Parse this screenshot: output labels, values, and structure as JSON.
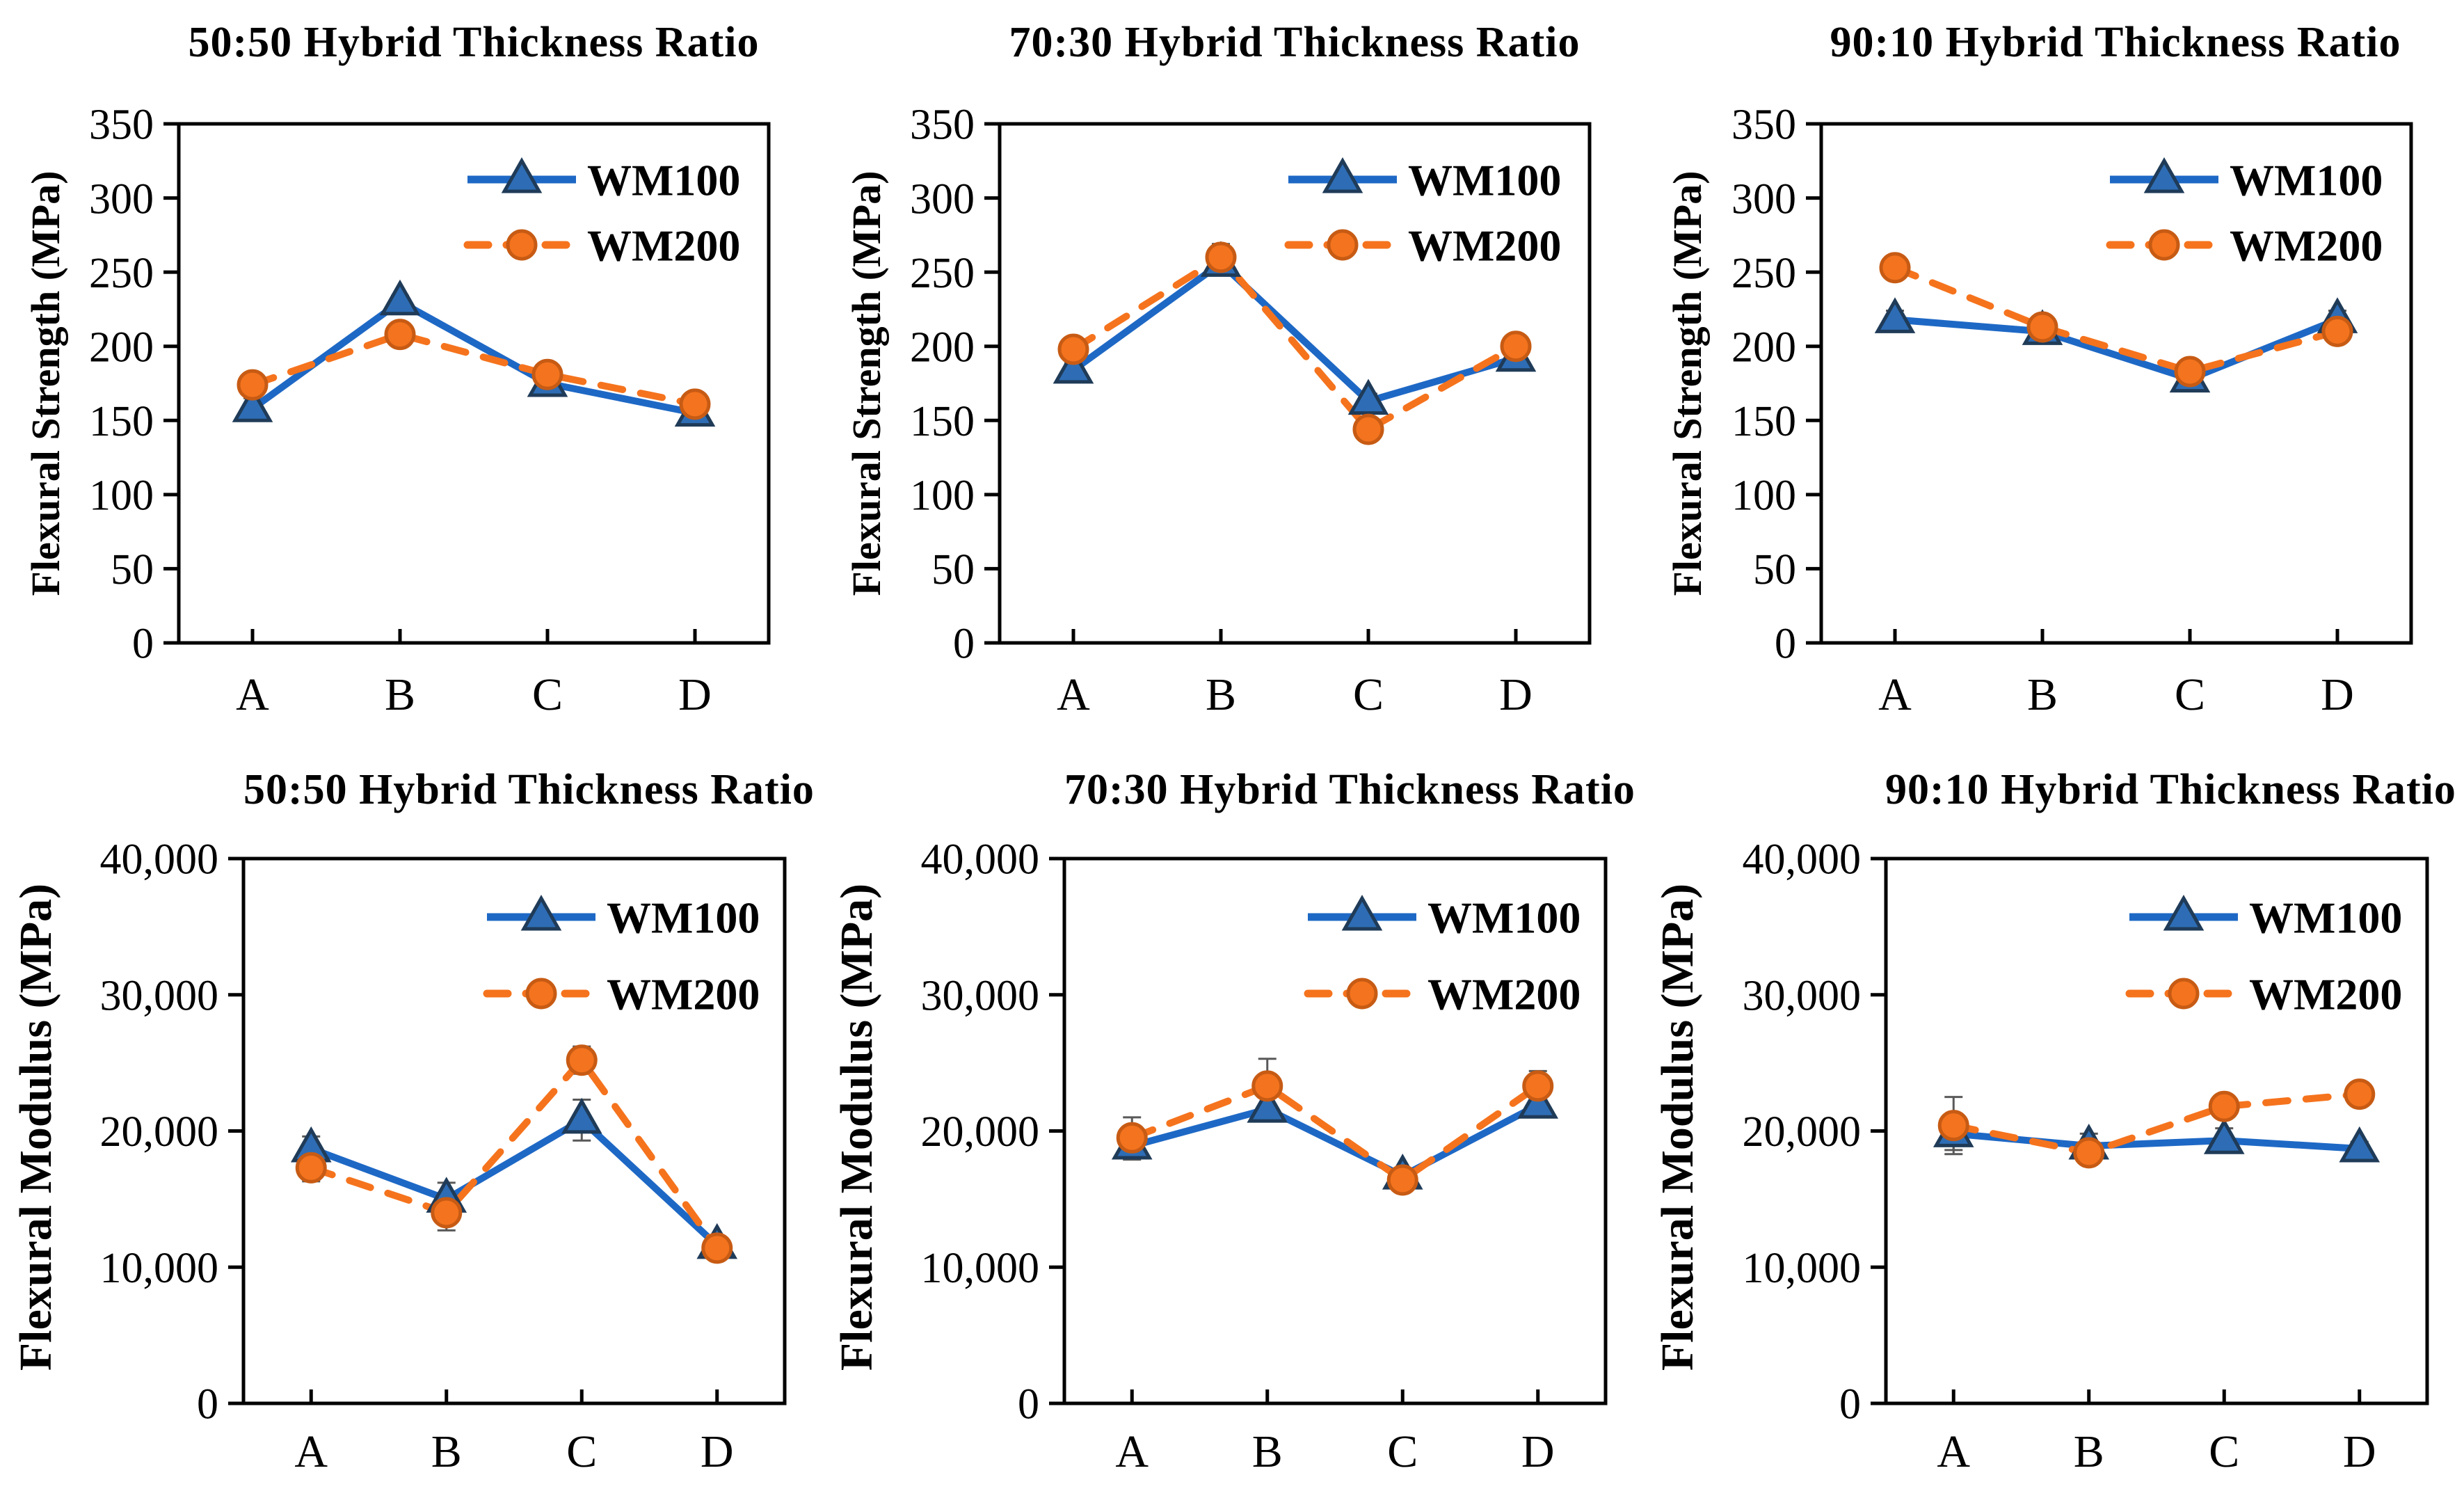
{
  "colors": {
    "wm100_line": "#1E68C5",
    "wm100_marker_fill": "#2E6DB5",
    "wm100_marker_stroke": "#1F3B58",
    "wm200_line": "#F5731D",
    "wm200_marker_fill": "#F4731E",
    "wm200_marker_stroke": "#C75B14",
    "error_bar": "#595959",
    "axis": "#000000",
    "text": "#000000",
    "background": "#FFFFFF"
  },
  "chart_data": [
    {
      "type": "line",
      "title": "50:50 Hybrid Thickness Ratio",
      "ylabel": "Flexural Strength (MPa)",
      "categories": [
        "A",
        "B",
        "C",
        "D"
      ],
      "ylim": [
        0,
        350
      ],
      "ytick_values": [
        0,
        50,
        100,
        150,
        200,
        250,
        300,
        350
      ],
      "ytick_labels": [
        "0",
        "50",
        "100",
        "150",
        "200",
        "250",
        "300",
        "350"
      ],
      "grid": false,
      "legend_position": "top-right-inside",
      "series": [
        {
          "name": "WM100",
          "values": [
            158,
            230,
            175,
            155
          ],
          "errors": [
            7,
            4,
            5,
            4
          ]
        },
        {
          "name": "WM200",
          "values": [
            174,
            208,
            181,
            161
          ],
          "errors": [
            8,
            4,
            5,
            3
          ]
        }
      ]
    },
    {
      "type": "line",
      "title": "70:30 Hybrid Thickness Ratio",
      "ylabel": "Flexural Strength (MPa)",
      "categories": [
        "A",
        "B",
        "C",
        "D"
      ],
      "ylim": [
        0,
        350
      ],
      "ytick_values": [
        0,
        50,
        100,
        150,
        200,
        250,
        300,
        350
      ],
      "ytick_labels": [
        "0",
        "50",
        "100",
        "150",
        "200",
        "250",
        "300",
        "350"
      ],
      "grid": false,
      "legend_position": "top-right-inside",
      "series": [
        {
          "name": "WM100",
          "values": [
            184,
            256,
            163,
            192
          ],
          "errors": [
            5,
            4,
            5,
            4
          ]
        },
        {
          "name": "WM200",
          "values": [
            198,
            260,
            144,
            200
          ],
          "errors": [
            5,
            9,
            5,
            4
          ]
        }
      ]
    },
    {
      "type": "line",
      "title": "90:10 Hybrid Thickness Ratio",
      "ylabel": "Flexural Strength (MPa)",
      "categories": [
        "A",
        "B",
        "C",
        "D"
      ],
      "ylim": [
        0,
        350
      ],
      "ytick_values": [
        0,
        50,
        100,
        150,
        200,
        250,
        300,
        350
      ],
      "ytick_labels": [
        "0",
        "50",
        "100",
        "150",
        "200",
        "250",
        "300",
        "350"
      ],
      "grid": false,
      "legend_position": "top-right-inside",
      "series": [
        {
          "name": "WM100",
          "values": [
            218,
            210,
            178,
            218
          ],
          "errors": [
            6,
            5,
            7,
            6
          ]
        },
        {
          "name": "WM200",
          "values": [
            253,
            213,
            183,
            210
          ],
          "errors": [
            5,
            6,
            8,
            5
          ]
        }
      ]
    },
    {
      "type": "line",
      "title": "50:50 Hybrid Thickness Ratio",
      "ylabel": "Flexural Modulus (MPa)",
      "categories": [
        "A",
        "B",
        "C",
        "D"
      ],
      "ylim": [
        0,
        40000
      ],
      "ytick_values": [
        0,
        10000,
        20000,
        30000,
        40000
      ],
      "ytick_labels": [
        "0",
        "10,000",
        "20,000",
        "30,000",
        "40,000"
      ],
      "grid": false,
      "legend_position": "top-right-inside",
      "series": [
        {
          "name": "WM100",
          "values": [
            18700,
            15000,
            20800,
            11600
          ],
          "errors": [
            900,
            1200,
            1500,
            600
          ]
        },
        {
          "name": "WM200",
          "values": [
            17300,
            14000,
            25200,
            11400
          ],
          "errors": [
            1000,
            1300,
            1000,
            700
          ]
        }
      ]
    },
    {
      "type": "line",
      "title": "70:30 Hybrid Thickness Ratio",
      "ylabel": "Flexural Modulus (MPa)",
      "categories": [
        "A",
        "B",
        "C",
        "D"
      ],
      "ylim": [
        0,
        40000
      ],
      "ytick_values": [
        0,
        10000,
        20000,
        30000,
        40000
      ],
      "ytick_labels": [
        "0",
        "10,000",
        "20,000",
        "30,000",
        "40,000"
      ],
      "grid": false,
      "legend_position": "top-right-inside",
      "series": [
        {
          "name": "WM100",
          "values": [
            18900,
            21600,
            16700,
            21900
          ],
          "errors": [
            1000,
            900,
            500,
            800
          ]
        },
        {
          "name": "WM200",
          "values": [
            19500,
            23300,
            16400,
            23300
          ],
          "errors": [
            1500,
            2000,
            500,
            1100
          ]
        }
      ]
    },
    {
      "type": "line",
      "title": "90:10 Hybrid Thickness Ratio",
      "ylabel": "Flexural Modulus (MPa)",
      "categories": [
        "A",
        "B",
        "C",
        "D"
      ],
      "ylim": [
        0,
        40000
      ],
      "ytick_values": [
        0,
        10000,
        20000,
        30000,
        40000
      ],
      "ytick_labels": [
        "0",
        "10,000",
        "20,000",
        "30,000",
        "40,000"
      ],
      "grid": false,
      "legend_position": "top-right-inside",
      "series": [
        {
          "name": "WM100",
          "values": [
            19800,
            18900,
            19300,
            18700
          ],
          "errors": [
            1200,
            900,
            900,
            500
          ]
        },
        {
          "name": "WM200",
          "values": [
            20400,
            18400,
            21800,
            22700
          ],
          "errors": [
            2100,
            800,
            600,
            500
          ]
        }
      ]
    }
  ]
}
